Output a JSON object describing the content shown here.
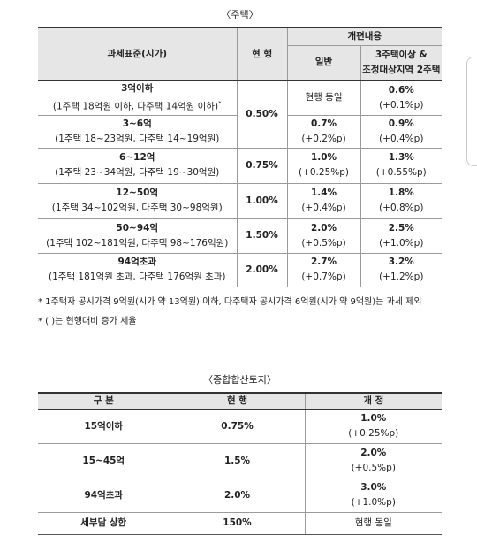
{
  "housing": {
    "title": "〈주택〉",
    "header": {
      "base": "과세표준(시가)",
      "current": "현 행",
      "reform": "개편내용",
      "general": "일반",
      "multi": [
        "3주택이상 &",
        "조정대상지역 2주택"
      ]
    },
    "rows": [
      {
        "bracket": "3억이하",
        "detail": "(1주택 18억원 이하, 다주택 14억원 이하)",
        "mark": "*",
        "current": "0.50%",
        "general": "현행 동일",
        "multi": "0.6%",
        "multi_change": "(+0.1%p)"
      },
      {
        "bracket": "3~6억",
        "detail": "(1주택 18~23억원, 다주택 14~19억원)",
        "general": "0.7%",
        "general_change": "(+0.2%p)",
        "multi": "0.9%",
        "multi_change": "(+0.4%p)"
      },
      {
        "bracket": "6~12억",
        "detail": "(1주택 23~34억원, 다주택 19~30억원)",
        "current": "0.75%",
        "general": "1.0%",
        "general_change": "(+0.25%p)",
        "multi": "1.3%",
        "multi_change": "(+0.55%p)"
      },
      {
        "bracket": "12~50억",
        "detail": "(1주택 34~102억원, 다주택 30~98억원)",
        "current": "1.00%",
        "general": "1.4%",
        "general_change": "(+0.4%p)",
        "multi": "1.8%",
        "multi_change": "(+0.8%p)"
      },
      {
        "bracket": "50~94억",
        "detail": "(1주택 102~181억원, 다주택 98~176억원)",
        "current": "1.50%",
        "general": "2.0%",
        "general_change": "(+0.5%p)",
        "multi": "2.5%",
        "multi_change": "(+1.0%p)"
      },
      {
        "bracket": "94억초과",
        "detail": "(1주택 181억원 초과, 다주택 176억원 초과)",
        "current": "2.00%",
        "general": "2.7%",
        "general_change": "(+0.7%p)",
        "multi": "3.2%",
        "multi_change": "(+1.2%p)"
      }
    ],
    "notes": [
      "* 1주택자 공시가격 9억원(시가 약 13억원) 이하, 다주택자 공시가격 6억원(시가 약 9억원)는 과세 제외",
      "* ( )는 현행대비 증가 세율"
    ]
  },
  "land": {
    "title": "〈종합합산토지〉",
    "header": [
      "구 분",
      "현 행",
      "개 정"
    ],
    "rows": [
      [
        "15억이하",
        "0.75%",
        "1.0%",
        "(+0.25%p)"
      ],
      [
        "15~45억",
        "1.5%",
        "2.0%",
        "(+0.5%p)"
      ],
      [
        "94억초과",
        "2.0%",
        "3.0%",
        "(+1.0%p)"
      ],
      [
        "세부담 상한",
        "150%",
        "현행 동일"
      ]
    ]
  }
}
